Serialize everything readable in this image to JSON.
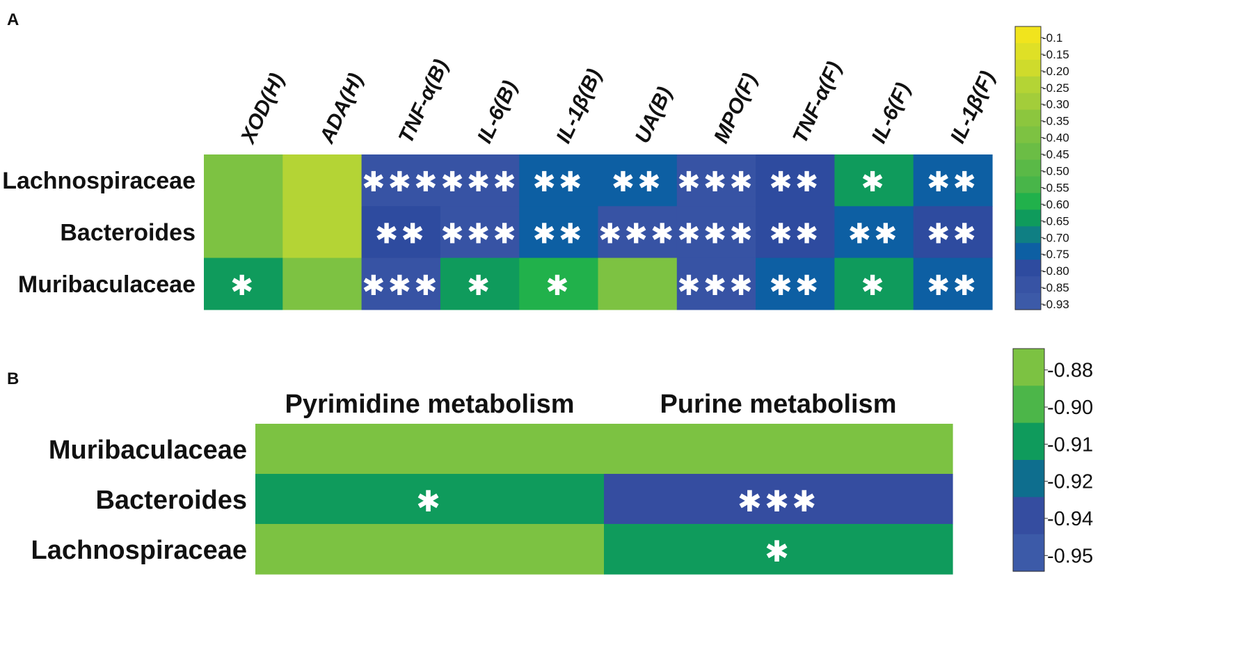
{
  "chart_data": [
    {
      "panel": "A",
      "type": "heatmap",
      "columns": [
        "XOD(H)",
        "ADA(H)",
        "TNF-α(B)",
        "IL-6(B)",
        "IL-1β(B)",
        "UA(B)",
        "MPO(F)",
        "TNF-α(F)",
        "IL-6(F)",
        "IL-1β(F)"
      ],
      "rows": [
        "Lachnospiraceae",
        "Bacteroides",
        "Muribaculaceae"
      ],
      "values": [
        [
          -0.4,
          -0.25,
          -0.85,
          -0.85,
          -0.75,
          -0.75,
          -0.85,
          -0.8,
          -0.65,
          -0.75
        ],
        [
          -0.4,
          -0.25,
          -0.8,
          -0.85,
          -0.75,
          -0.85,
          -0.85,
          -0.8,
          -0.75,
          -0.8
        ],
        [
          -0.65,
          -0.4,
          -0.85,
          -0.65,
          -0.6,
          -0.4,
          -0.85,
          -0.75,
          -0.65,
          -0.75
        ]
      ],
      "significance": [
        [
          "",
          "",
          "***",
          "***",
          "**",
          "**",
          "***",
          "**",
          "*",
          "**"
        ],
        [
          "",
          "",
          "**",
          "***",
          "**",
          "***",
          "***",
          "**",
          "**",
          "**"
        ],
        [
          "*",
          "",
          "***",
          "*",
          "*",
          "",
          "***",
          "**",
          "*",
          "**"
        ]
      ],
      "colorbar": {
        "ticks": [
          "-0.1",
          "-0.15",
          "-0.20",
          "-0.25",
          "-0.30",
          "-0.35",
          "-0.40",
          "-0.45",
          "-0.50",
          "-0.55",
          "-0.60",
          "-0.65",
          "-0.70",
          "-0.75",
          "-0.80",
          "-0.85",
          "-0.93"
        ],
        "values": [
          -0.1,
          -0.15,
          -0.2,
          -0.25,
          -0.3,
          -0.35,
          -0.4,
          -0.45,
          -0.5,
          -0.55,
          -0.6,
          -0.65,
          -0.7,
          -0.75,
          -0.8,
          -0.85,
          -0.93
        ],
        "colors": [
          "#f1e41d",
          "#dfe026",
          "#cfdb2c",
          "#b4d435",
          "#a3cd3a",
          "#8cc63e",
          "#7dc242",
          "#6bbd45",
          "#5ab947",
          "#48b549",
          "#21b14b",
          "#0f9b5c",
          "#0f7f83",
          "#0d5fa3",
          "#2e4b9f",
          "#3753a4",
          "#3c5aa8"
        ]
      }
    },
    {
      "panel": "B",
      "type": "heatmap",
      "columns": [
        "Pyrimidine metabolism",
        "Purine metabolism"
      ],
      "rows": [
        "Muribaculaceae",
        "Bacteroides",
        "Lachnospiraceae"
      ],
      "values": [
        [
          -0.88,
          -0.88
        ],
        [
          -0.91,
          -0.94
        ],
        [
          -0.88,
          -0.91
        ]
      ],
      "significance": [
        [
          "",
          ""
        ],
        [
          "*",
          "***"
        ],
        [
          "",
          "*"
        ]
      ],
      "colorbar": {
        "ticks": [
          "-0.88",
          "-0.90",
          "-0.91",
          "-0.92",
          "-0.94",
          "-0.95"
        ],
        "values": [
          -0.88,
          -0.9,
          -0.91,
          -0.92,
          -0.94,
          -0.95
        ],
        "colors": [
          "#7cc242",
          "#4cb649",
          "#0f9b5c",
          "#0e6e8e",
          "#354da0",
          "#3c5aa8"
        ]
      }
    }
  ],
  "panel_labels": {
    "a": "A",
    "b": "B"
  }
}
